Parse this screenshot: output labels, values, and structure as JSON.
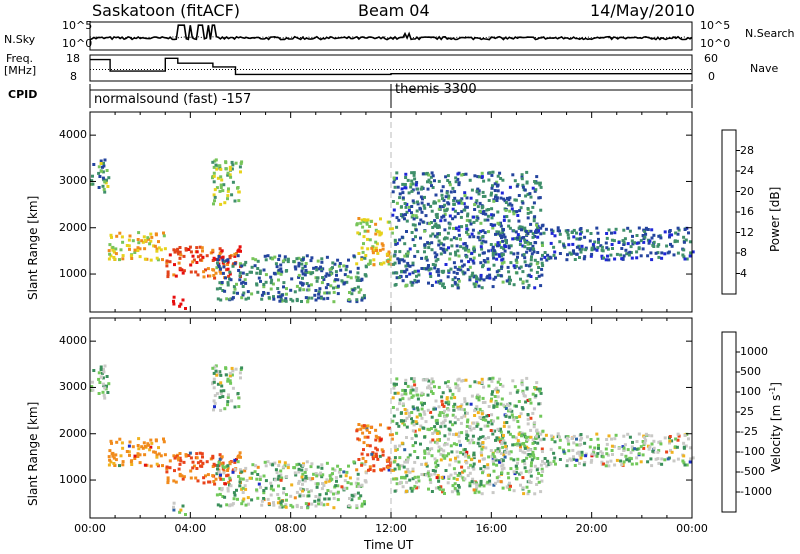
{
  "header": {
    "station": "Saskatoon (fitACF)",
    "beam": "Beam 04",
    "date": "14/May/2010"
  },
  "noise_panel": {
    "left_label": "N.Sky",
    "right_label": "N.Search",
    "left_ticks": [
      "10^5",
      "10^0"
    ],
    "right_ticks": [
      "10^5",
      "10^0"
    ]
  },
  "freq_panel": {
    "left_label_1": "Freq.",
    "left_label_2": "[MHz]",
    "right_label": "Nave",
    "left_ticks": [
      "18",
      "8"
    ],
    "right_ticks": [
      "60",
      "0"
    ],
    "freq_steps": [
      {
        "start": 0.0,
        "end": 0.8,
        "value": 16.8
      },
      {
        "start": 0.8,
        "end": 3.0,
        "value": 11.6
      },
      {
        "start": 3.0,
        "end": 3.5,
        "value": 17.4
      },
      {
        "start": 3.5,
        "end": 4.9,
        "value": 15.2
      },
      {
        "start": 4.9,
        "end": 5.8,
        "value": 13.5
      },
      {
        "start": 5.8,
        "end": 12.0,
        "value": 10.1
      },
      {
        "start": 12.0,
        "end": 24.0,
        "value": 10.4
      }
    ],
    "nave_level": 26
  },
  "cpid": {
    "label": "CPID",
    "modes": [
      {
        "name": "normalsound (fast) -157",
        "start": 0.0
      },
      {
        "name": "themis 3300",
        "start": 12.0
      }
    ]
  },
  "time_axis": {
    "label": "Time UT",
    "ticks": [
      "00:00",
      "04:00",
      "08:00",
      "12:00",
      "16:00",
      "20:00",
      "00:00"
    ]
  },
  "range_axis": {
    "label": "Slant Range [km]",
    "ticks": [
      "1000",
      "2000",
      "3000",
      "4000"
    ]
  },
  "power_colorbar": {
    "label": "Power [dB]",
    "ticks": [
      "4",
      "8",
      "12",
      "16",
      "20",
      "24",
      "28"
    ],
    "colors": [
      "#1f27d6",
      "#24449e",
      "#3f8f6a",
      "#77c45a",
      "#e7d21c",
      "#f08c1b",
      "#e2421a",
      "#e70d0d"
    ]
  },
  "velocity_colorbar": {
    "label": "Velocity [m s",
    "label_sup": "-1",
    "label_end": "]",
    "ticks": [
      "1000",
      "500",
      "100",
      "25",
      "-25",
      "-100",
      "-500",
      "-1000"
    ],
    "colors": [
      "#1c2ec8",
      "#2c63a4",
      "#3a8f5a",
      "#71c85a",
      "#c9c9c6",
      "#f0b21e",
      "#f18b1c",
      "#e9431a",
      "#e2120f"
    ]
  },
  "chart_data": {
    "type": "heatmap",
    "x_range_hours": [
      0,
      24
    ],
    "y_range_km": [
      180,
      4500
    ],
    "echo_regions": [
      {
        "t0": 0.0,
        "t1": 0.7,
        "r0": 2700,
        "r1": 3500,
        "power_db": 12,
        "velocity_ms": 25
      },
      {
        "t0": 0.7,
        "t1": 3.0,
        "r0": 1300,
        "r1": 1900,
        "power_db": 18,
        "velocity_ms": -100
      },
      {
        "t0": 3.0,
        "t1": 6.0,
        "r0": 900,
        "r1": 1600,
        "power_db": 26,
        "velocity_ms": -300
      },
      {
        "t0": 3.2,
        "t1": 3.8,
        "r0": 250,
        "r1": 500,
        "power_db": 29,
        "velocity_ms": 25
      },
      {
        "t0": 4.8,
        "t1": 6.0,
        "r0": 2500,
        "r1": 3500,
        "power_db": 14,
        "velocity_ms": 25
      },
      {
        "t0": 5.0,
        "t1": 11.0,
        "r0": 400,
        "r1": 1400,
        "power_db": 9,
        "velocity_ms": 25
      },
      {
        "t0": 10.5,
        "t1": 12.0,
        "r0": 1200,
        "r1": 2200,
        "power_db": 18,
        "velocity_ms": -300
      },
      {
        "t0": 12.0,
        "t1": 18.0,
        "r0": 700,
        "r1": 3200,
        "power_db": 8,
        "velocity_ms": 25
      },
      {
        "t0": 16.0,
        "t1": 24.0,
        "r0": 1300,
        "r1": 2000,
        "power_db": 7,
        "velocity_ms": 25
      }
    ]
  }
}
